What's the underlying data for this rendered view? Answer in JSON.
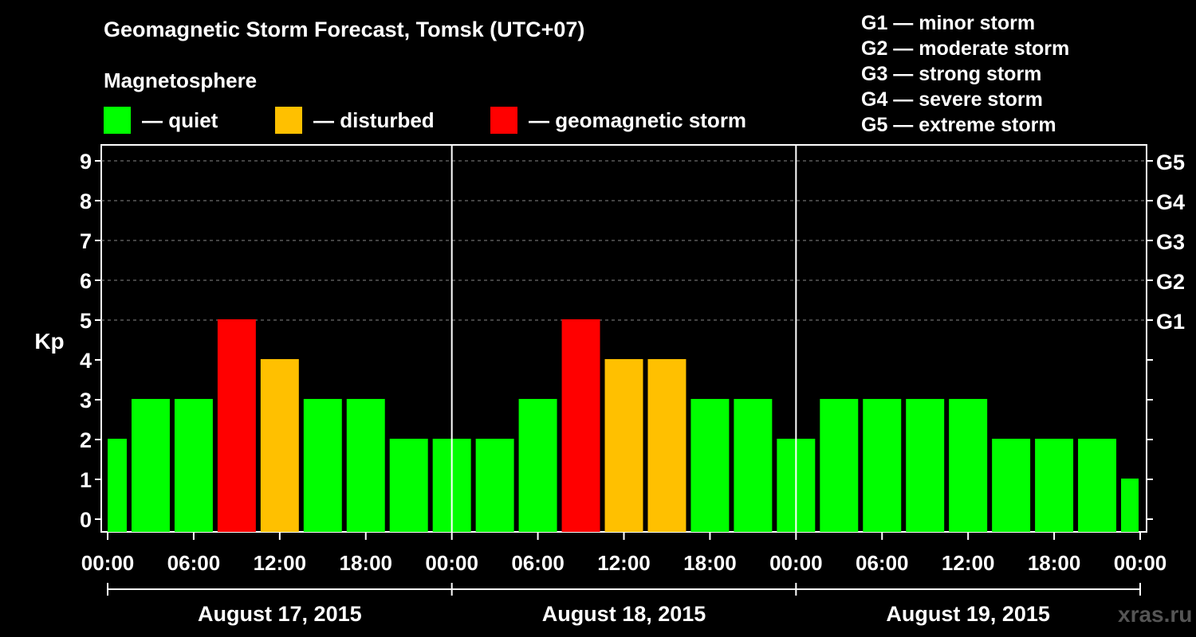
{
  "title": "Geomagnetic Storm Forecast, Tomsk (UTC+07)",
  "magnetosphere_label": "Magnetosphere",
  "legend": [
    {
      "label": "— quiet",
      "color": "#00ff00"
    },
    {
      "label": "— disturbed",
      "color": "#ffc000"
    },
    {
      "label": "— geomagnetic storm",
      "color": "#ff0000"
    }
  ],
  "storm_levels": [
    "G1 — minor storm",
    "G2 — moderate storm",
    "G3 — strong storm",
    "G4 — severe storm",
    "G5 — extreme storm"
  ],
  "watermark": "xras.ru",
  "chart_data": {
    "type": "bar",
    "title": "Geomagnetic Storm Forecast, Tomsk (UTC+07)",
    "ylabel": "Kp",
    "ylim": [
      0,
      9
    ],
    "yticks": [
      "0",
      "1",
      "2",
      "3",
      "4",
      "5",
      "6",
      "7",
      "8",
      "9"
    ],
    "right_ticks": [
      {
        "kp": 5,
        "label": "G1"
      },
      {
        "kp": 6,
        "label": "G2"
      },
      {
        "kp": 7,
        "label": "G3"
      },
      {
        "kp": 8,
        "label": "G4"
      },
      {
        "kp": 9,
        "label": "G5"
      }
    ],
    "xtick_labels": [
      "00:00",
      "06:00",
      "12:00",
      "18:00",
      "00:00",
      "06:00",
      "12:00",
      "18:00",
      "00:00",
      "06:00",
      "12:00",
      "18:00",
      "00:00"
    ],
    "days": [
      "August 17, 2015",
      "August 18, 2015",
      "August 19, 2015"
    ],
    "bar_interval_hours": 3,
    "values": [
      2,
      3,
      3,
      5,
      4,
      3,
      3,
      2,
      2,
      2,
      3,
      5,
      4,
      4,
      3,
      3,
      2,
      3,
      3,
      3,
      3,
      2,
      2,
      2,
      1
    ],
    "grid": "dashed horizontal",
    "colors": {
      "quiet": "#00ff00",
      "disturbed": "#ffc000",
      "storm": "#ff0000"
    },
    "thresholds": {
      "disturbed": 4,
      "storm": 5
    }
  }
}
